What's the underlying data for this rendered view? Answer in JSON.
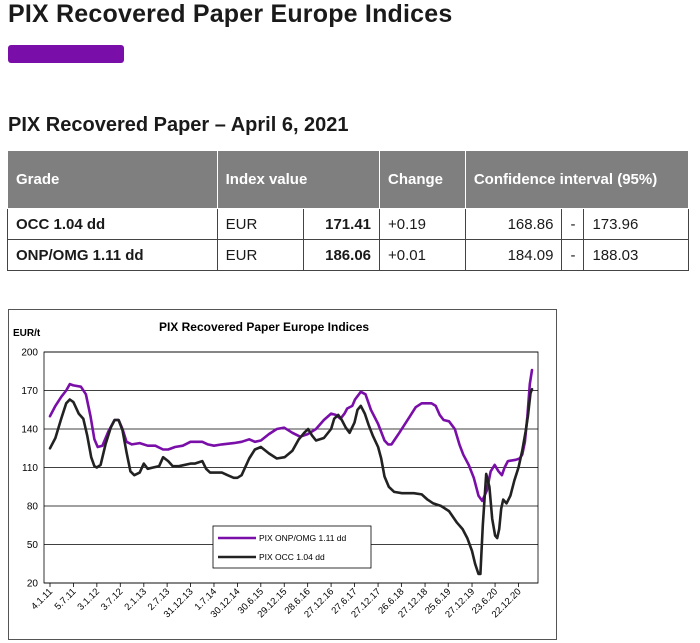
{
  "page": {
    "title": "PIX Recovered Paper Europe Indices",
    "accent_color": "#7a0ea8"
  },
  "section": {
    "title": "PIX Recovered Paper – April 6, 2021"
  },
  "table": {
    "headers": {
      "grade": "Grade",
      "index_value": "Index value",
      "change": "Change",
      "confidence": "Confidence interval (95%)"
    },
    "rows": [
      {
        "grade": "OCC 1.04 dd",
        "currency": "EUR",
        "value": "171.41",
        "change": "+0.19",
        "ci_low": "168.86",
        "ci_sep": "-",
        "ci_high": "173.96"
      },
      {
        "grade": "ONP/OMG 1.11 dd",
        "currency": "EUR",
        "value": "186.06",
        "change": "+0.01",
        "ci_low": "184.09",
        "ci_sep": "-",
        "ci_high": "188.03"
      }
    ]
  },
  "chart_data": {
    "type": "line",
    "title": "PIX Recovered Paper Europe Indices",
    "ylabel": "EUR/t",
    "xlabel": "",
    "ylim": [
      20,
      200
    ],
    "yticks": [
      20,
      50,
      80,
      110,
      140,
      170,
      200
    ],
    "xlim": [
      "2011-01-04",
      "2021-04-06"
    ],
    "xtick_labels": [
      "4.1.11",
      "5.7.11",
      "3.1.12",
      "3.7.12",
      "2.1.13",
      "2.7.13",
      "31.12.13",
      "1.7.14",
      "30.12.14",
      "30.6.15",
      "29.12.15",
      "28.6.16",
      "27.12.16",
      "27.6.17",
      "27.12.17",
      "26.6.18",
      "27.12.18",
      "25.6.19",
      "27.12.19",
      "23.6.20",
      "22.12.20"
    ],
    "xtick_dates": [
      "2011-01-04",
      "2011-07-05",
      "2012-01-03",
      "2012-07-03",
      "2013-01-02",
      "2013-07-02",
      "2013-12-31",
      "2014-07-01",
      "2014-12-30",
      "2015-06-30",
      "2015-12-29",
      "2016-06-28",
      "2016-12-27",
      "2017-06-27",
      "2017-12-27",
      "2018-06-26",
      "2018-12-27",
      "2019-06-25",
      "2019-12-27",
      "2020-06-23",
      "2020-12-22"
    ],
    "grid": "horizontal",
    "legend_position": "bottom-center",
    "series": [
      {
        "name": "PIX ONP/OMG 1.11 dd",
        "color": "#7a0ea8",
        "points": [
          [
            "2011-01-04",
            150
          ],
          [
            "2011-02-15",
            158
          ],
          [
            "2011-04-01",
            165
          ],
          [
            "2011-05-10",
            170
          ],
          [
            "2011-06-07",
            175
          ],
          [
            "2011-07-05",
            174
          ],
          [
            "2011-09-01",
            173
          ],
          [
            "2011-10-10",
            167
          ],
          [
            "2011-11-15",
            150
          ],
          [
            "2011-12-15",
            132
          ],
          [
            "2012-01-10",
            126
          ],
          [
            "2012-02-15",
            127
          ],
          [
            "2012-04-01",
            138
          ],
          [
            "2012-05-20",
            147
          ],
          [
            "2012-06-20",
            147
          ],
          [
            "2012-07-20",
            140
          ],
          [
            "2012-08-20",
            130
          ],
          [
            "2012-10-01",
            128
          ],
          [
            "2012-12-01",
            129
          ],
          [
            "2013-02-01",
            127
          ],
          [
            "2013-04-01",
            127
          ],
          [
            "2013-06-01",
            124
          ],
          [
            "2013-07-10",
            124
          ],
          [
            "2013-09-01",
            126
          ],
          [
            "2013-11-01",
            127
          ],
          [
            "2013-12-31",
            130
          ],
          [
            "2014-04-01",
            130
          ],
          [
            "2014-05-15",
            128
          ],
          [
            "2014-07-01",
            127
          ],
          [
            "2014-09-01",
            128
          ],
          [
            "2014-12-01",
            129
          ],
          [
            "2015-02-01",
            130
          ],
          [
            "2015-04-01",
            132
          ],
          [
            "2015-05-15",
            130
          ],
          [
            "2015-07-01",
            131
          ],
          [
            "2015-09-01",
            136
          ],
          [
            "2015-11-01",
            140
          ],
          [
            "2015-12-29",
            141
          ],
          [
            "2016-03-01",
            137
          ],
          [
            "2016-05-01",
            134
          ],
          [
            "2016-06-28",
            136
          ],
          [
            "2016-09-01",
            140
          ],
          [
            "2016-11-01",
            147
          ],
          [
            "2016-12-27",
            152
          ],
          [
            "2017-02-01",
            151
          ],
          [
            "2017-03-10",
            148
          ],
          [
            "2017-04-10",
            152
          ],
          [
            "2017-05-01",
            156
          ],
          [
            "2017-06-10",
            158
          ],
          [
            "2017-07-01",
            163
          ],
          [
            "2017-08-15",
            169
          ],
          [
            "2017-09-20",
            167
          ],
          [
            "2017-11-01",
            155
          ],
          [
            "2017-12-27",
            144
          ],
          [
            "2018-02-15",
            131
          ],
          [
            "2018-03-15",
            128
          ],
          [
            "2018-04-10",
            128
          ],
          [
            "2018-06-10",
            137
          ],
          [
            "2018-09-01",
            150
          ],
          [
            "2018-10-15",
            157
          ],
          [
            "2018-12-01",
            160
          ],
          [
            "2019-02-15",
            160
          ],
          [
            "2019-03-20",
            158
          ],
          [
            "2019-04-20",
            151
          ],
          [
            "2019-05-20",
            147
          ],
          [
            "2019-07-01",
            146
          ],
          [
            "2019-08-15",
            140
          ],
          [
            "2019-09-20",
            128
          ],
          [
            "2019-10-20",
            120
          ],
          [
            "2019-12-01",
            112
          ],
          [
            "2020-01-10",
            102
          ],
          [
            "2020-02-15",
            88
          ],
          [
            "2020-03-15",
            84
          ],
          [
            "2020-04-20",
            92
          ],
          [
            "2020-05-20",
            107
          ],
          [
            "2020-06-20",
            112
          ],
          [
            "2020-07-20",
            107
          ],
          [
            "2020-08-15",
            104
          ],
          [
            "2020-09-05",
            110
          ],
          [
            "2020-10-01",
            115
          ],
          [
            "2020-12-01",
            116
          ],
          [
            "2020-12-31",
            117
          ],
          [
            "2021-01-20",
            120
          ],
          [
            "2021-02-10",
            130
          ],
          [
            "2021-03-01",
            150
          ],
          [
            "2021-03-20",
            175
          ],
          [
            "2021-04-06",
            186
          ]
        ]
      },
      {
        "name": "PIX OCC 1.04 dd",
        "color": "#222222",
        "points": [
          [
            "2011-01-04",
            125
          ],
          [
            "2011-02-15",
            133
          ],
          [
            "2011-04-01",
            148
          ],
          [
            "2011-05-10",
            160
          ],
          [
            "2011-06-07",
            163
          ],
          [
            "2011-07-05",
            161
          ],
          [
            "2011-08-15",
            152
          ],
          [
            "2011-09-20",
            148
          ],
          [
            "2011-10-20",
            135
          ],
          [
            "2011-11-20",
            118
          ],
          [
            "2011-12-15",
            111
          ],
          [
            "2012-01-03",
            110
          ],
          [
            "2012-02-01",
            112
          ],
          [
            "2012-03-10",
            128
          ],
          [
            "2012-04-20",
            141
          ],
          [
            "2012-05-20",
            147
          ],
          [
            "2012-06-20",
            147
          ],
          [
            "2012-07-20",
            139
          ],
          [
            "2012-08-20",
            122
          ],
          [
            "2012-09-20",
            107
          ],
          [
            "2012-10-20",
            104
          ],
          [
            "2012-12-01",
            106
          ],
          [
            "2013-01-02",
            113
          ],
          [
            "2013-02-01",
            109
          ],
          [
            "2013-03-15",
            110
          ],
          [
            "2013-05-01",
            111
          ],
          [
            "2013-06-01",
            118
          ],
          [
            "2013-07-10",
            115
          ],
          [
            "2013-08-15",
            111
          ],
          [
            "2013-10-01",
            111
          ],
          [
            "2013-12-31",
            113
          ],
          [
            "2014-02-01",
            113
          ],
          [
            "2014-04-01",
            115
          ],
          [
            "2014-05-01",
            109
          ],
          [
            "2014-06-01",
            106
          ],
          [
            "2014-09-01",
            106
          ],
          [
            "2014-10-15",
            104
          ],
          [
            "2014-12-01",
            102
          ],
          [
            "2014-12-30",
            102
          ],
          [
            "2015-02-01",
            104
          ],
          [
            "2015-04-01",
            117
          ],
          [
            "2015-05-15",
            124
          ],
          [
            "2015-07-01",
            126
          ],
          [
            "2015-09-01",
            121
          ],
          [
            "2015-11-01",
            117
          ],
          [
            "2016-01-01",
            118
          ],
          [
            "2016-03-01",
            123
          ],
          [
            "2016-04-20",
            132
          ],
          [
            "2016-06-01",
            137
          ],
          [
            "2016-07-01",
            140
          ],
          [
            "2016-08-01",
            135
          ],
          [
            "2016-09-01",
            131
          ],
          [
            "2016-11-01",
            133
          ],
          [
            "2016-12-27",
            140
          ],
          [
            "2017-01-20",
            148
          ],
          [
            "2017-02-20",
            151
          ],
          [
            "2017-03-20",
            147
          ],
          [
            "2017-04-20",
            141
          ],
          [
            "2017-05-20",
            137
          ],
          [
            "2017-06-27",
            145
          ],
          [
            "2017-07-20",
            155
          ],
          [
            "2017-08-15",
            158
          ],
          [
            "2017-09-15",
            152
          ],
          [
            "2017-10-15",
            143
          ],
          [
            "2017-11-15",
            135
          ],
          [
            "2017-12-27",
            126
          ],
          [
            "2018-01-20",
            117
          ],
          [
            "2018-02-15",
            103
          ],
          [
            "2018-03-20",
            95
          ],
          [
            "2018-05-01",
            91
          ],
          [
            "2018-07-01",
            90
          ],
          [
            "2018-10-01",
            90
          ],
          [
            "2018-12-01",
            89
          ],
          [
            "2019-01-15",
            85
          ],
          [
            "2019-03-01",
            82
          ],
          [
            "2019-05-01",
            80
          ],
          [
            "2019-07-01",
            76
          ],
          [
            "2019-09-01",
            67
          ],
          [
            "2019-10-15",
            62
          ],
          [
            "2019-11-20",
            55
          ],
          [
            "2019-12-27",
            45
          ],
          [
            "2020-01-20",
            35
          ],
          [
            "2020-02-15",
            27
          ],
          [
            "2020-03-01",
            27
          ],
          [
            "2020-03-20",
            65
          ],
          [
            "2020-04-15",
            105
          ],
          [
            "2020-05-10",
            95
          ],
          [
            "2020-06-01",
            70
          ],
          [
            "2020-06-23",
            57
          ],
          [
            "2020-07-10",
            55
          ],
          [
            "2020-07-25",
            62
          ],
          [
            "2020-08-10",
            78
          ],
          [
            "2020-08-25",
            85
          ],
          [
            "2020-09-20",
            82
          ],
          [
            "2020-10-20",
            88
          ],
          [
            "2020-11-20",
            100
          ],
          [
            "2020-12-22",
            110
          ],
          [
            "2021-01-20",
            123
          ],
          [
            "2021-02-15",
            138
          ],
          [
            "2021-03-05",
            150
          ],
          [
            "2021-03-25",
            168
          ],
          [
            "2021-04-06",
            171
          ]
        ]
      }
    ]
  }
}
